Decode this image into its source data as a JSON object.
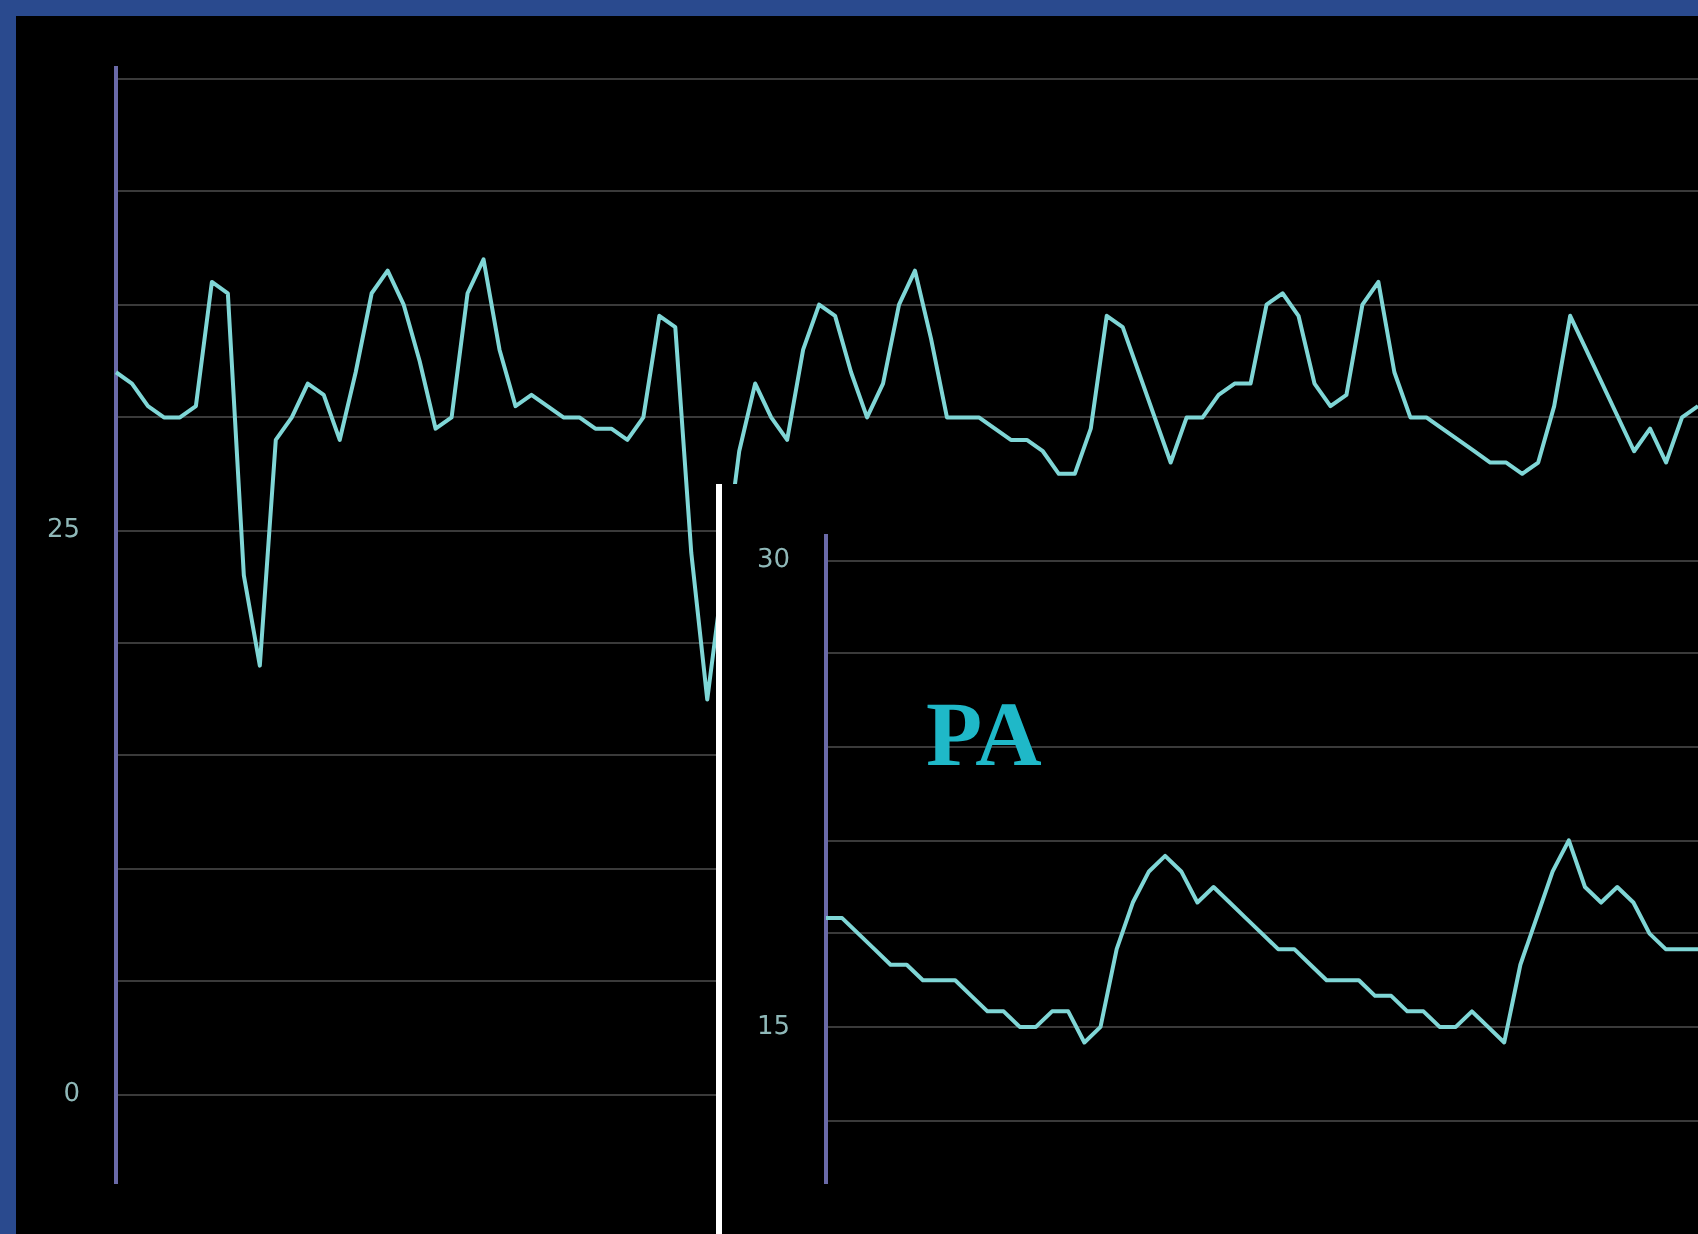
{
  "chart_data": [
    {
      "type": "line",
      "categories": [
        null,
        null,
        null,
        null,
        null,
        null,
        null,
        null,
        null,
        null,
        null,
        null,
        null,
        null,
        null,
        null,
        null,
        null,
        null,
        null,
        null,
        null,
        null,
        null,
        null,
        null,
        null,
        null,
        null,
        null,
        null,
        null,
        null,
        null,
        null,
        null,
        null,
        null,
        null,
        null,
        null,
        null,
        null,
        null,
        null,
        null,
        null,
        null,
        null,
        null,
        null,
        null,
        null,
        null,
        null,
        null,
        null,
        null,
        null,
        null,
        null,
        null,
        null,
        null,
        null,
        null,
        null,
        null,
        null,
        null,
        null,
        null,
        null,
        null,
        null,
        null,
        null,
        null,
        null,
        null,
        null,
        null,
        null,
        null,
        null,
        null,
        null,
        null,
        null,
        null,
        null,
        null,
        null,
        null,
        null,
        null,
        null,
        null,
        null,
        null
      ],
      "series": [
        {
          "color": "#7fd6d6",
          "values": [
            32,
            31.5,
            30.5,
            30,
            30,
            30.5,
            36,
            35.5,
            23,
            19,
            29,
            30,
            31.5,
            31,
            29,
            32,
            35.5,
            36.5,
            35,
            32.5,
            29.5,
            30,
            35.5,
            37,
            33,
            30.5,
            31,
            30.5,
            30,
            30,
            29.5,
            29.5,
            29,
            30,
            34.5,
            34,
            24,
            17.5,
            null,
            28.5,
            31.5,
            30,
            29,
            33,
            35,
            34.5,
            32,
            30,
            31.5,
            35,
            36.5,
            33.5,
            30,
            30,
            30,
            29.5,
            29,
            29,
            28.5,
            27.5,
            27.5,
            29.5,
            34.5,
            34,
            null,
            null,
            28,
            30,
            30,
            31,
            31.5,
            31.5,
            35,
            35.5,
            34.5,
            31.5,
            30.5,
            31,
            35,
            36,
            32,
            30,
            30,
            29.5,
            29,
            28.5,
            28,
            28,
            27.5,
            28,
            30.5,
            34.5,
            33,
            null,
            null,
            28.5,
            29.5,
            28,
            30,
            30.5
          ]
        }
      ],
      "ylim": [
        -3.9,
        45.5
      ],
      "yticks": [
        0,
        {
          "value": 5,
          "label": null
        },
        {
          "value": 10,
          "label": null
        },
        {
          "value": 15,
          "label": null
        },
        {
          "value": 20,
          "label": null
        },
        25,
        {
          "value": 30,
          "label": null
        },
        {
          "value": 35,
          "label": null
        },
        {
          "value": 40,
          "label": null
        },
        {
          "value": 45,
          "label": null
        }
      ],
      "grid": "y",
      "tick_labels": "y",
      "marker": "none"
    },
    {
      "type": "line",
      "title": "PA",
      "categories": [
        null,
        null,
        null,
        null,
        null,
        null,
        null,
        null,
        null,
        null,
        null,
        null,
        null,
        null,
        null,
        null,
        null,
        null,
        null,
        null,
        null,
        null,
        null,
        null,
        null,
        null,
        null,
        null,
        null,
        null,
        null,
        null,
        null,
        null,
        null,
        null,
        null,
        null,
        null,
        null,
        null,
        null,
        null,
        null,
        null,
        null,
        null,
        null,
        null,
        null,
        null,
        null,
        null,
        null,
        null
      ],
      "series": [
        {
          "color": "#7fd6d6",
          "values": [
            18.5,
            18.5,
            18,
            17.5,
            17,
            17,
            16.5,
            16.5,
            16.5,
            16,
            15.5,
            15.5,
            15,
            15,
            15.5,
            15.5,
            14.5,
            15,
            17.5,
            19,
            20,
            20.5,
            20,
            19,
            19.5,
            19,
            18.5,
            18,
            17.5,
            17.5,
            17,
            16.5,
            16.5,
            16.5,
            16,
            16,
            15.5,
            15.5,
            15,
            15,
            15.5,
            15,
            14.5,
            17,
            18.5,
            20,
            21,
            19.5,
            19,
            19.5,
            19,
            18,
            17.5,
            17.5,
            17.5
          ]
        }
      ],
      "ylim": [
        10,
        30.8
      ],
      "yticks": [
        {
          "value": 12,
          "label": null
        },
        15,
        {
          "value": 18,
          "label": null
        },
        {
          "value": 21,
          "label": null
        },
        {
          "value": 24,
          "label": null
        },
        {
          "value": 27,
          "label": null
        },
        30
      ],
      "grid": "y",
      "tick_labels": "y",
      "marker": "none"
    }
  ]
}
